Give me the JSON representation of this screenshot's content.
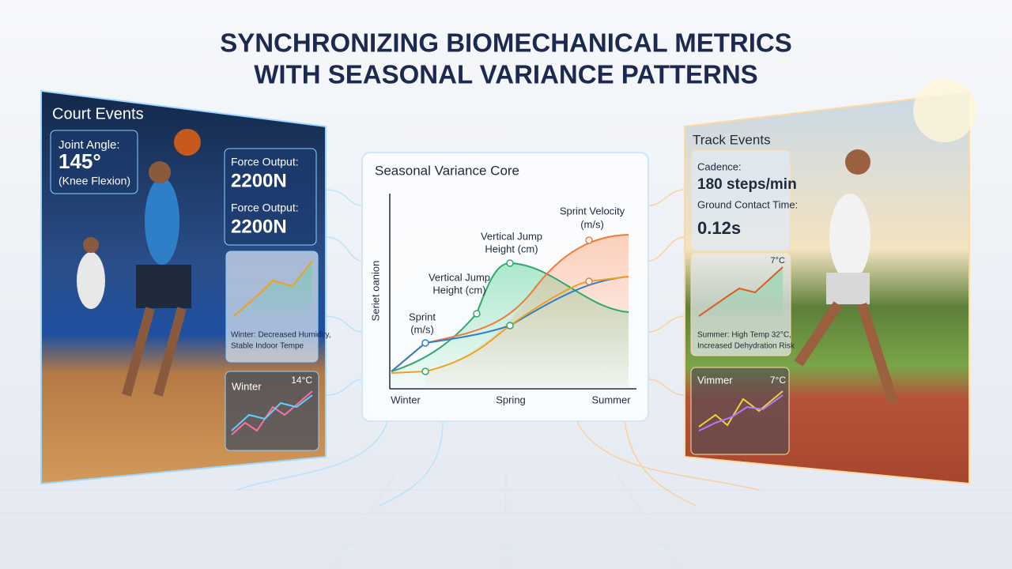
{
  "header": {
    "title": [
      "SYNCHRONIZING BIOMECHANICAL METRICS",
      "WITH SEASONAL VARIANCE PATTERNS"
    ]
  },
  "left_panel": {
    "title": "Court Events",
    "joint_angle": {
      "label": "Joint Angle:",
      "value": "145°",
      "note": "(Knee Flexion)"
    },
    "force_outputs": [
      {
        "label": "Force Output:",
        "value": "2200N"
      },
      {
        "label": "Force Output:",
        "value": "2200N"
      }
    ],
    "chart_note": [
      "Winter: Decreased Humidity,",
      "Stable Indoor Tempe"
    ],
    "mini_chart": {
      "label": "Winter",
      "temp": "14°C"
    }
  },
  "center_panel": {
    "title": "Seasonal Variance Core",
    "y_label": "Seriet oanion",
    "curve_labels": [
      [
        "Sprint Velocity",
        "(m/s)"
      ],
      [
        "Vertical Jump",
        "Height (cm)"
      ],
      [
        "Vertical Jump",
        "Height (cm)"
      ],
      [
        "Sprint",
        "(m/s)"
      ]
    ],
    "x_labels": [
      "Winter",
      "Spring",
      "Summer"
    ]
  },
  "right_panel": {
    "title": "Track Events",
    "metrics": [
      {
        "label": "Cadence:",
        "value": "180 steps/min"
      },
      {
        "label": "Ground Contact Time:",
        "value": "0.12s"
      }
    ],
    "chart_temp": "7°C",
    "chart_note": [
      "Summer: High Temp 32°C,",
      "Increased Dehydration Risk"
    ],
    "mini_chart": {
      "label": "Vimmer",
      "temp": "7°C"
    }
  }
}
